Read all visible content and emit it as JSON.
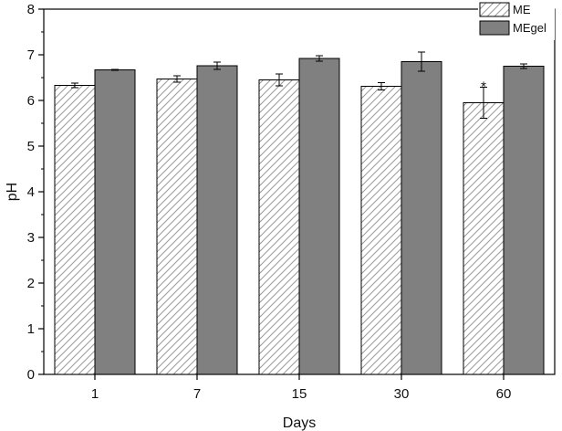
{
  "chart_data": {
    "type": "bar",
    "xlabel": "Days",
    "ylabel": "pH",
    "ylim": [
      0,
      8
    ],
    "yticks": [
      0,
      1,
      2,
      3,
      4,
      5,
      6,
      7,
      8
    ],
    "grid": false,
    "legend_position": "top-right",
    "categories": [
      "1",
      "7",
      "15",
      "30",
      "60"
    ],
    "series": [
      {
        "name": "ME",
        "style": "hatched",
        "color": "#ffffff",
        "values": [
          6.33,
          6.47,
          6.45,
          6.31,
          5.95
        ],
        "errors": [
          0.05,
          0.07,
          0.13,
          0.08,
          0.34
        ]
      },
      {
        "name": "MEgel",
        "style": "solid",
        "color": "#808080",
        "values": [
          6.67,
          6.76,
          6.92,
          6.85,
          6.75
        ],
        "errors": [
          0.01,
          0.08,
          0.06,
          0.21,
          0.05
        ]
      }
    ],
    "annotations": [
      {
        "text": "*",
        "category": "60",
        "series": "ME"
      }
    ]
  }
}
